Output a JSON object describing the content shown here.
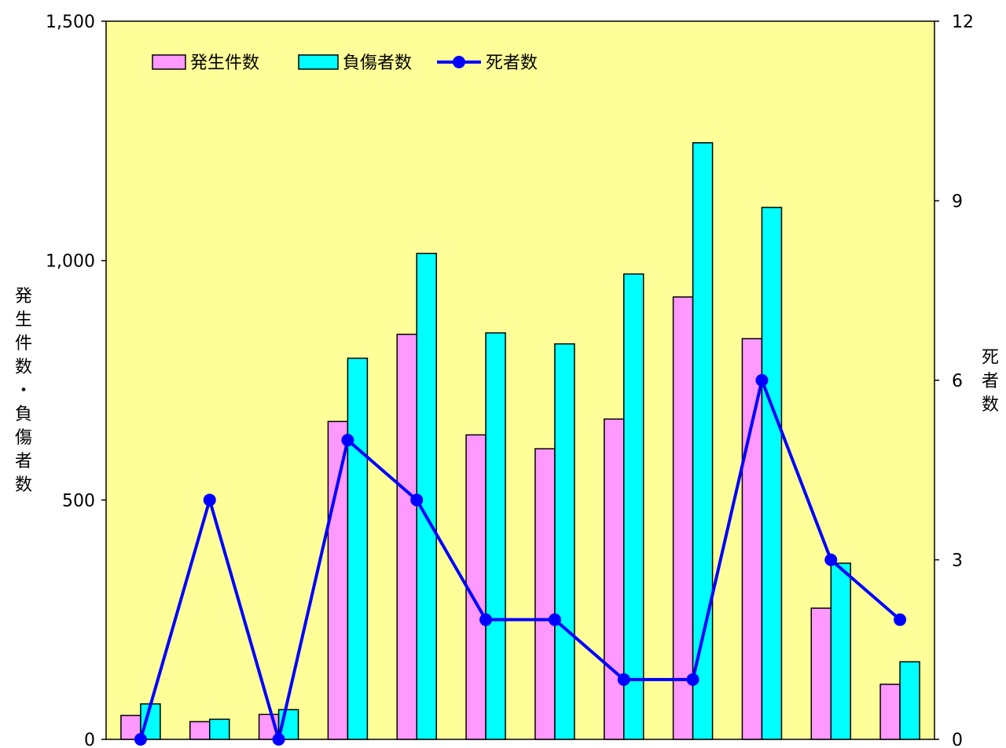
{
  "chart_data": {
    "type": "bar",
    "categories": [
      "",
      "",
      "",
      "",
      "",
      "",
      "",
      "",
      "",
      "",
      "",
      ""
    ],
    "series": [
      {
        "name": "発生件数",
        "axis": "left",
        "kind": "bar",
        "color": "#ff99ff",
        "values": [
          50,
          37,
          52,
          664,
          846,
          636,
          607,
          669,
          924,
          837,
          274,
          115
        ]
      },
      {
        "name": "負傷者数",
        "axis": "left",
        "kind": "bar",
        "color": "#00ffff",
        "values": [
          74,
          42,
          62,
          796,
          1015,
          849,
          826,
          972,
          1246,
          1111,
          368,
          162
        ]
      },
      {
        "name": "死者数",
        "axis": "right",
        "kind": "line",
        "color": "#0000ff",
        "values": [
          0,
          4,
          0,
          5,
          4,
          2,
          2,
          1,
          1,
          6,
          3,
          2
        ]
      }
    ],
    "y_left": {
      "label": "発生件数・負傷者数",
      "ylim": [
        0,
        1500
      ],
      "ticks": [
        0,
        500,
        1000,
        1500
      ],
      "tick_labels": [
        "0",
        "500",
        "1,000",
        "1,500"
      ]
    },
    "y_right": {
      "label": "死者数",
      "ylim": [
        0,
        12
      ],
      "ticks": [
        0,
        3,
        6,
        9,
        12
      ],
      "tick_labels": [
        "0",
        "3",
        "6",
        "9",
        "12"
      ]
    },
    "legend": {
      "position": "top-left",
      "labels": [
        "発生件数",
        "負傷者数",
        "死者数"
      ]
    },
    "plot_background": "#ffff99",
    "grid": false
  }
}
